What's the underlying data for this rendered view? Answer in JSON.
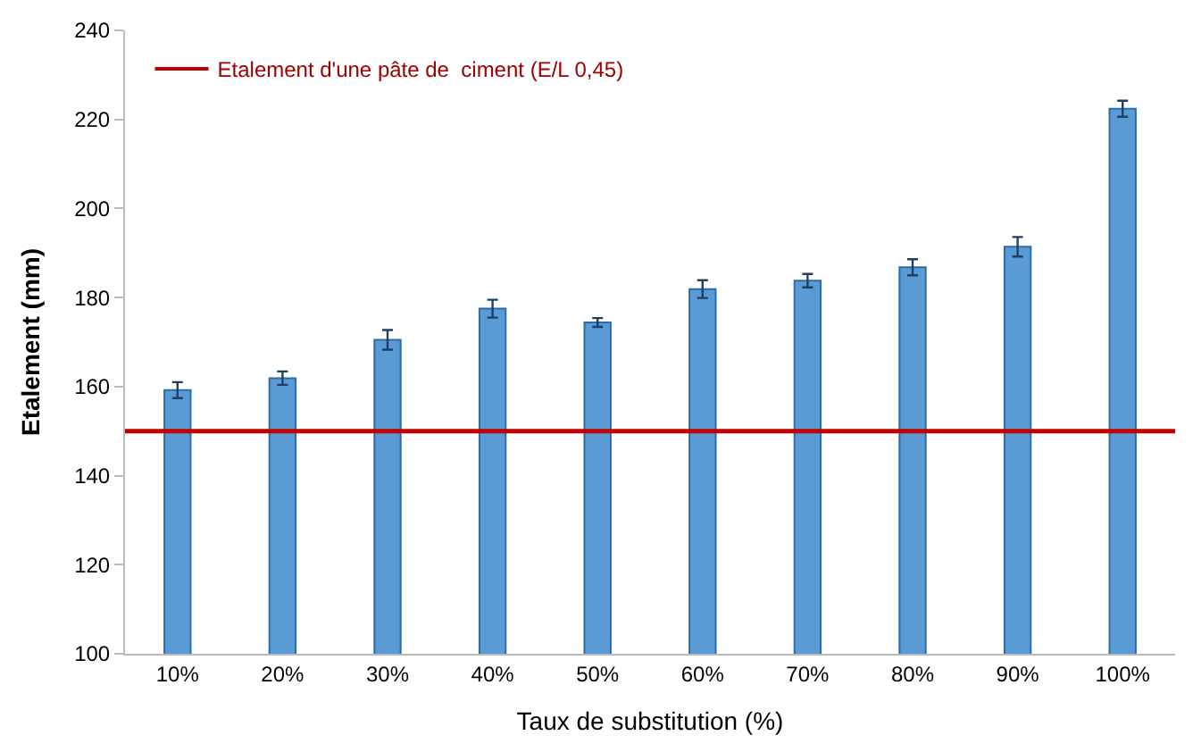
{
  "chart_data": {
    "type": "bar",
    "xlabel": "Taux de substitution (%)",
    "ylabel": "Etalement (mm)",
    "categories": [
      "10%",
      "20%",
      "30%",
      "40%",
      "50%",
      "60%",
      "70%",
      "80%",
      "90%",
      "100%"
    ],
    "series": [
      {
        "color": "#5b9bd5",
        "values": [
          159.2,
          161.9,
          170.5,
          177.5,
          174.4,
          181.9,
          183.8,
          186.8,
          191.4,
          222.4
        ],
        "errors": [
          1.8,
          1.5,
          2.2,
          2,
          1,
          2,
          1.5,
          1.8,
          2.2,
          1.8
        ]
      }
    ],
    "ylim": [
      100,
      240
    ],
    "yticks": [
      100,
      120,
      140,
      160,
      180,
      200,
      220,
      240
    ],
    "ref_lines": [
      {
        "axis": "y",
        "value": 150,
        "label": "Etalement d'une pâte de  ciment (E/L 0,45)",
        "color": "#c00000",
        "line_style": "solid"
      }
    ],
    "legend": "top left"
  }
}
